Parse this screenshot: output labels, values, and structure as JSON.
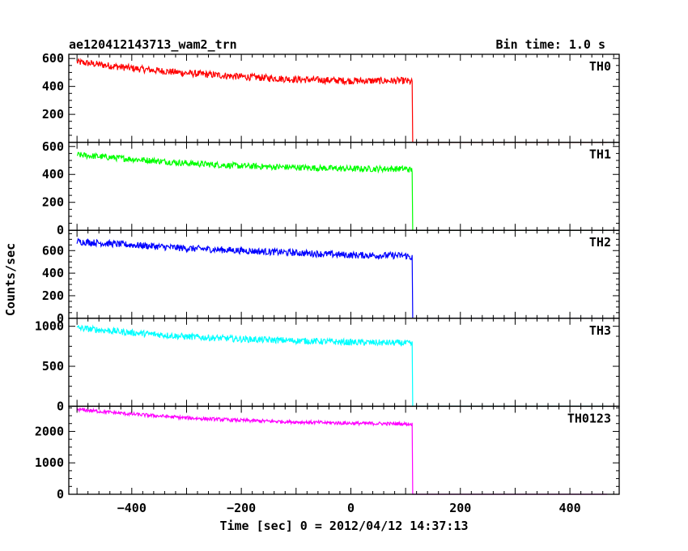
{
  "chart_data": {
    "type": "line",
    "title": "ae120412143713_wam2_trn",
    "bin_time": "Bin time: 1.0 s",
    "xlabel": "Time [sec] 0 = 2012/04/12 14:37:13",
    "ylabel": "Counts/sec",
    "xlim": [
      -515,
      490
    ],
    "x_ticks": [
      -400,
      -200,
      0,
      200,
      400
    ],
    "x_tick_labels": [
      "−400",
      "−200",
      "0",
      "200",
      "400"
    ],
    "panels": [
      {
        "name": "TH0",
        "color": "#ff0000",
        "ylim": [
          0,
          630
        ],
        "y_ticks": [
          200,
          400,
          600
        ],
        "y_tick_labels": [
          "200",
          "400",
          "600"
        ],
        "x": [
          -500,
          -400,
          -300,
          -200,
          -100,
          0,
          100,
          112,
          113,
          468
        ],
        "y": [
          575,
          530,
          495,
          470,
          450,
          440,
          440,
          430,
          0,
          0
        ],
        "noise": 25
      },
      {
        "name": "TH1",
        "color": "#00ff00",
        "ylim": [
          0,
          630
        ],
        "y_ticks": [
          0,
          200,
          400,
          600
        ],
        "y_tick_labels": [
          "0",
          "200",
          "400",
          "600"
        ],
        "x": [
          -500,
          -400,
          -300,
          -200,
          -100,
          0,
          100,
          112,
          113,
          468
        ],
        "y": [
          540,
          510,
          480,
          460,
          450,
          440,
          440,
          430,
          0,
          0
        ],
        "noise": 22
      },
      {
        "name": "TH2",
        "color": "#0000ff",
        "ylim": [
          0,
          780
        ],
        "y_ticks": [
          0,
          200,
          400,
          600
        ],
        "y_tick_labels": [
          "0",
          "200",
          "400",
          "600"
        ],
        "x": [
          -500,
          -400,
          -300,
          -200,
          -100,
          0,
          100,
          112,
          113,
          468
        ],
        "y": [
          680,
          650,
          620,
          600,
          580,
          560,
          555,
          540,
          0,
          0
        ],
        "noise": 30
      },
      {
        "name": "TH3",
        "color": "#00ffff",
        "ylim": [
          0,
          1100
        ],
        "y_ticks": [
          0,
          500,
          1000
        ],
        "y_tick_labels": [
          "0",
          "500",
          "1000"
        ],
        "x": [
          -500,
          -400,
          -300,
          -200,
          -100,
          0,
          100,
          112,
          113,
          468
        ],
        "y": [
          980,
          920,
          870,
          840,
          820,
          800,
          790,
          780,
          0,
          0
        ],
        "noise": 40
      },
      {
        "name": "TH0123",
        "color": "#ff00ff",
        "ylim": [
          0,
          2800
        ],
        "y_ticks": [
          0,
          1000,
          2000
        ],
        "y_tick_labels": [
          "0",
          "1000",
          "2000"
        ],
        "x": [
          -500,
          -400,
          -300,
          -200,
          -100,
          0,
          100,
          112,
          113,
          468
        ],
        "y": [
          2700,
          2550,
          2430,
          2350,
          2300,
          2260,
          2240,
          2230,
          0,
          0
        ],
        "noise": 55
      }
    ]
  }
}
